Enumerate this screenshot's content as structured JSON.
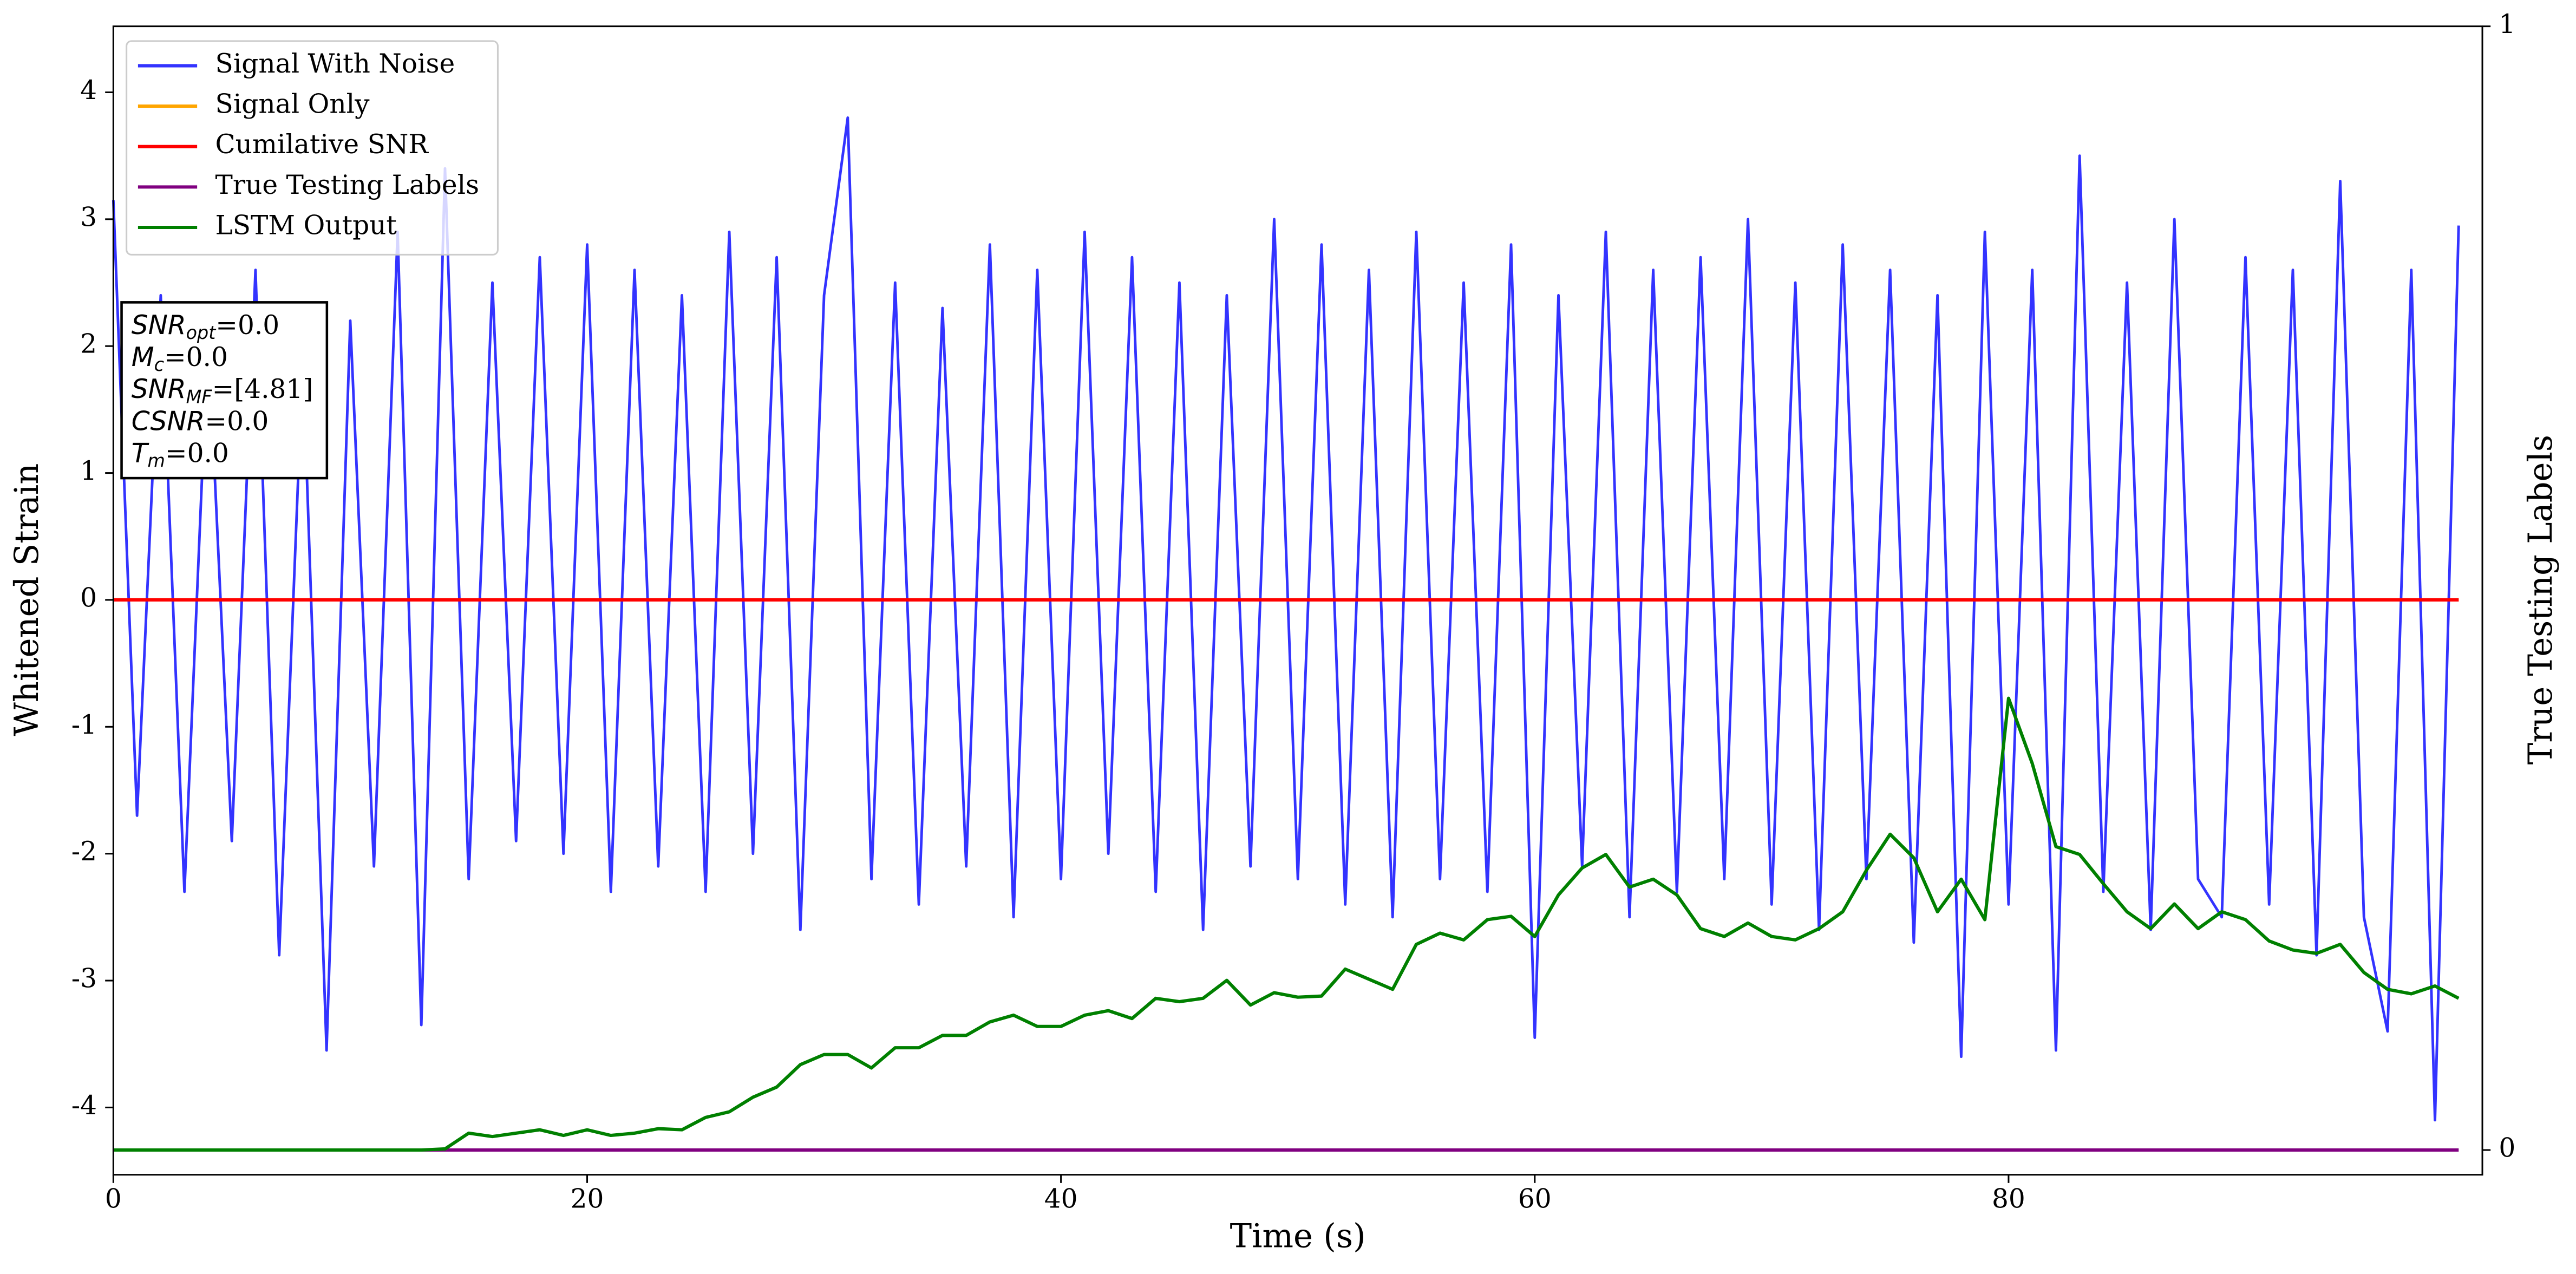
{
  "chart_data": {
    "type": "line",
    "xlabel": "Time (s)",
    "ylabel": "Whitened Strain",
    "y2label": "True Testing Labels",
    "xlim": [
      0,
      100
    ],
    "xticks": [
      0,
      20,
      40,
      60,
      80
    ],
    "ylim": [
      -4.53,
      4.52
    ],
    "yticks": [
      -4,
      -3,
      -2,
      -1,
      0,
      1,
      2,
      3,
      4
    ],
    "y2lim": [
      -0.022,
      1
    ],
    "y2ticks": [
      0,
      1
    ],
    "legend": "upper left",
    "x": [
      0,
      1,
      2,
      3,
      4,
      5,
      6,
      7,
      8,
      9,
      10,
      11,
      12,
      13,
      14,
      15,
      16,
      17,
      18,
      19,
      20,
      21,
      22,
      23,
      24,
      25,
      26,
      27,
      28,
      29,
      30,
      31,
      32,
      33,
      34,
      35,
      36,
      37,
      38,
      39,
      40,
      41,
      42,
      43,
      44,
      45,
      46,
      47,
      48,
      49,
      50,
      51,
      52,
      53,
      54,
      55,
      56,
      57,
      58,
      59,
      60,
      61,
      62,
      63,
      64,
      65,
      66,
      67,
      68,
      69,
      70,
      71,
      72,
      73,
      74,
      75,
      76,
      77,
      78,
      79,
      80,
      81,
      82,
      83,
      84,
      85,
      86,
      87,
      88,
      89,
      90,
      91,
      92,
      93,
      94,
      95,
      96,
      97,
      98,
      99
    ],
    "series": [
      {
        "name": "Signal With Noise",
        "color": "#3333ff",
        "values": [
          3.15,
          -1.7,
          2.4,
          -2.3,
          2.1,
          -1.9,
          2.6,
          -2.8,
          1.9,
          -3.55,
          2.2,
          -2.1,
          2.9,
          -3.35,
          3.4,
          -2.2,
          2.5,
          -1.9,
          2.7,
          -2.0,
          2.8,
          -2.3,
          2.6,
          -2.1,
          2.4,
          -2.3,
          2.9,
          -2.0,
          2.7,
          -2.6,
          2.4,
          3.8,
          -2.2,
          2.5,
          -2.4,
          2.3,
          -2.1,
          2.8,
          -2.5,
          2.6,
          -2.2,
          2.9,
          -2.0,
          2.7,
          -2.3,
          2.5,
          -2.6,
          2.4,
          -2.1,
          3.0,
          -2.2,
          2.8,
          -2.4,
          2.6,
          -2.5,
          2.9,
          -2.2,
          2.5,
          -2.3,
          2.8,
          -3.45,
          2.4,
          -2.1,
          2.9,
          -2.5,
          2.6,
          -2.3,
          2.7,
          -2.2,
          3.0,
          -2.4,
          2.5,
          -2.6,
          2.8,
          -2.2,
          2.6,
          -2.7,
          2.4,
          -3.6,
          2.9,
          -2.4,
          2.6,
          -3.55,
          3.5,
          -2.3,
          2.5,
          -2.6,
          3.0,
          -2.2,
          -2.5,
          2.7,
          -2.4,
          2.6,
          -2.8,
          3.3,
          -2.5,
          -3.4,
          2.6,
          -4.1,
          2.95
        ]
      },
      {
        "name": "Signal Only",
        "color": "#ffa500",
        "values": [
          0,
          0,
          0,
          0,
          0,
          0,
          0,
          0,
          0,
          0,
          0,
          0,
          0,
          0,
          0,
          0,
          0,
          0,
          0,
          0,
          0,
          0,
          0,
          0,
          0,
          0,
          0,
          0,
          0,
          0,
          0,
          0,
          0,
          0,
          0,
          0,
          0,
          0,
          0,
          0,
          0,
          0,
          0,
          0,
          0,
          0,
          0,
          0,
          0,
          0,
          0,
          0,
          0,
          0,
          0,
          0,
          0,
          0,
          0,
          0,
          0,
          0,
          0,
          0,
          0,
          0,
          0,
          0,
          0,
          0,
          0,
          0,
          0,
          0,
          0,
          0,
          0,
          0,
          0,
          0,
          0,
          0,
          0,
          0,
          0,
          0,
          0,
          0,
          0,
          0,
          0,
          0,
          0,
          0,
          0,
          0,
          0,
          0,
          0,
          0
        ]
      },
      {
        "name": "Cumilative SNR",
        "color": "#ff0000",
        "values": [
          0,
          0,
          0,
          0,
          0,
          0,
          0,
          0,
          0,
          0,
          0,
          0,
          0,
          0,
          0,
          0,
          0,
          0,
          0,
          0,
          0,
          0,
          0,
          0,
          0,
          0,
          0,
          0,
          0,
          0,
          0,
          0,
          0,
          0,
          0,
          0,
          0,
          0,
          0,
          0,
          0,
          0,
          0,
          0,
          0,
          0,
          0,
          0,
          0,
          0,
          0,
          0,
          0,
          0,
          0,
          0,
          0,
          0,
          0,
          0,
          0,
          0,
          0,
          0,
          0,
          0,
          0,
          0,
          0,
          0,
          0,
          0,
          0,
          0,
          0,
          0,
          0,
          0,
          0,
          0,
          0,
          0,
          0,
          0,
          0,
          0,
          0,
          0,
          0,
          0,
          0,
          0,
          0,
          0,
          0,
          0,
          0,
          0,
          0,
          0
        ]
      },
      {
        "name": "True Testing Labels",
        "color": "#800080",
        "axis": "y2",
        "values": [
          0,
          0,
          0,
          0,
          0,
          0,
          0,
          0,
          0,
          0,
          0,
          0,
          0,
          0,
          0,
          0,
          0,
          0,
          0,
          0,
          0,
          0,
          0,
          0,
          0,
          0,
          0,
          0,
          0,
          0,
          0,
          0,
          0,
          0,
          0,
          0,
          0,
          0,
          0,
          0,
          0,
          0,
          0,
          0,
          0,
          0,
          0,
          0,
          0,
          0,
          0,
          0,
          0,
          0,
          0,
          0,
          0,
          0,
          0,
          0,
          0,
          0,
          0,
          0,
          0,
          0,
          0,
          0,
          0,
          0,
          0,
          0,
          0,
          0,
          0,
          0,
          0,
          0,
          0,
          0,
          0,
          0,
          0,
          0,
          0,
          0,
          0,
          0,
          0,
          0,
          0,
          0,
          0,
          0,
          0,
          0,
          0,
          0,
          0,
          0
        ]
      },
      {
        "name": "LSTM Output",
        "color": "#008000",
        "axis": "y2",
        "values": [
          0,
          0,
          0,
          0,
          0,
          0,
          0,
          0,
          0,
          0,
          0,
          0,
          0,
          0,
          0.001,
          0.015,
          0.012,
          0.015,
          0.018,
          0.013,
          0.018,
          0.013,
          0.015,
          0.019,
          0.018,
          0.029,
          0.034,
          0.047,
          0.056,
          0.076,
          0.085,
          0.085,
          0.073,
          0.091,
          0.091,
          0.102,
          0.102,
          0.114,
          0.12,
          0.11,
          0.11,
          0.12,
          0.124,
          0.117,
          0.135,
          0.132,
          0.135,
          0.151,
          0.129,
          0.14,
          0.136,
          0.137,
          0.161,
          0.152,
          0.143,
          0.183,
          0.193,
          0.187,
          0.205,
          0.208,
          0.19,
          0.227,
          0.251,
          0.263,
          0.234,
          0.241,
          0.227,
          0.197,
          0.19,
          0.202,
          0.19,
          0.187,
          0.197,
          0.212,
          0.249,
          0.281,
          0.26,
          0.212,
          0.241,
          0.205,
          0.402,
          0.344,
          0.27,
          0.263,
          0.237,
          0.212,
          0.197,
          0.219,
          0.197,
          0.212,
          0.205,
          0.186,
          0.178,
          0.175,
          0.183,
          0.158,
          0.143,
          0.139,
          0.146,
          0.135
        ]
      }
    ],
    "annotations": [
      {
        "base": "SNR",
        "sub": "opt",
        "text": "=0.0"
      },
      {
        "base": "M",
        "sub": "c",
        "text": "=0.0"
      },
      {
        "base": "SNR",
        "sub": "MF",
        "text": "=[4.81]"
      },
      {
        "base": "CSNR",
        "text": "=0.0"
      },
      {
        "base": "T",
        "sub": "m",
        "text": "=0.0"
      }
    ]
  }
}
